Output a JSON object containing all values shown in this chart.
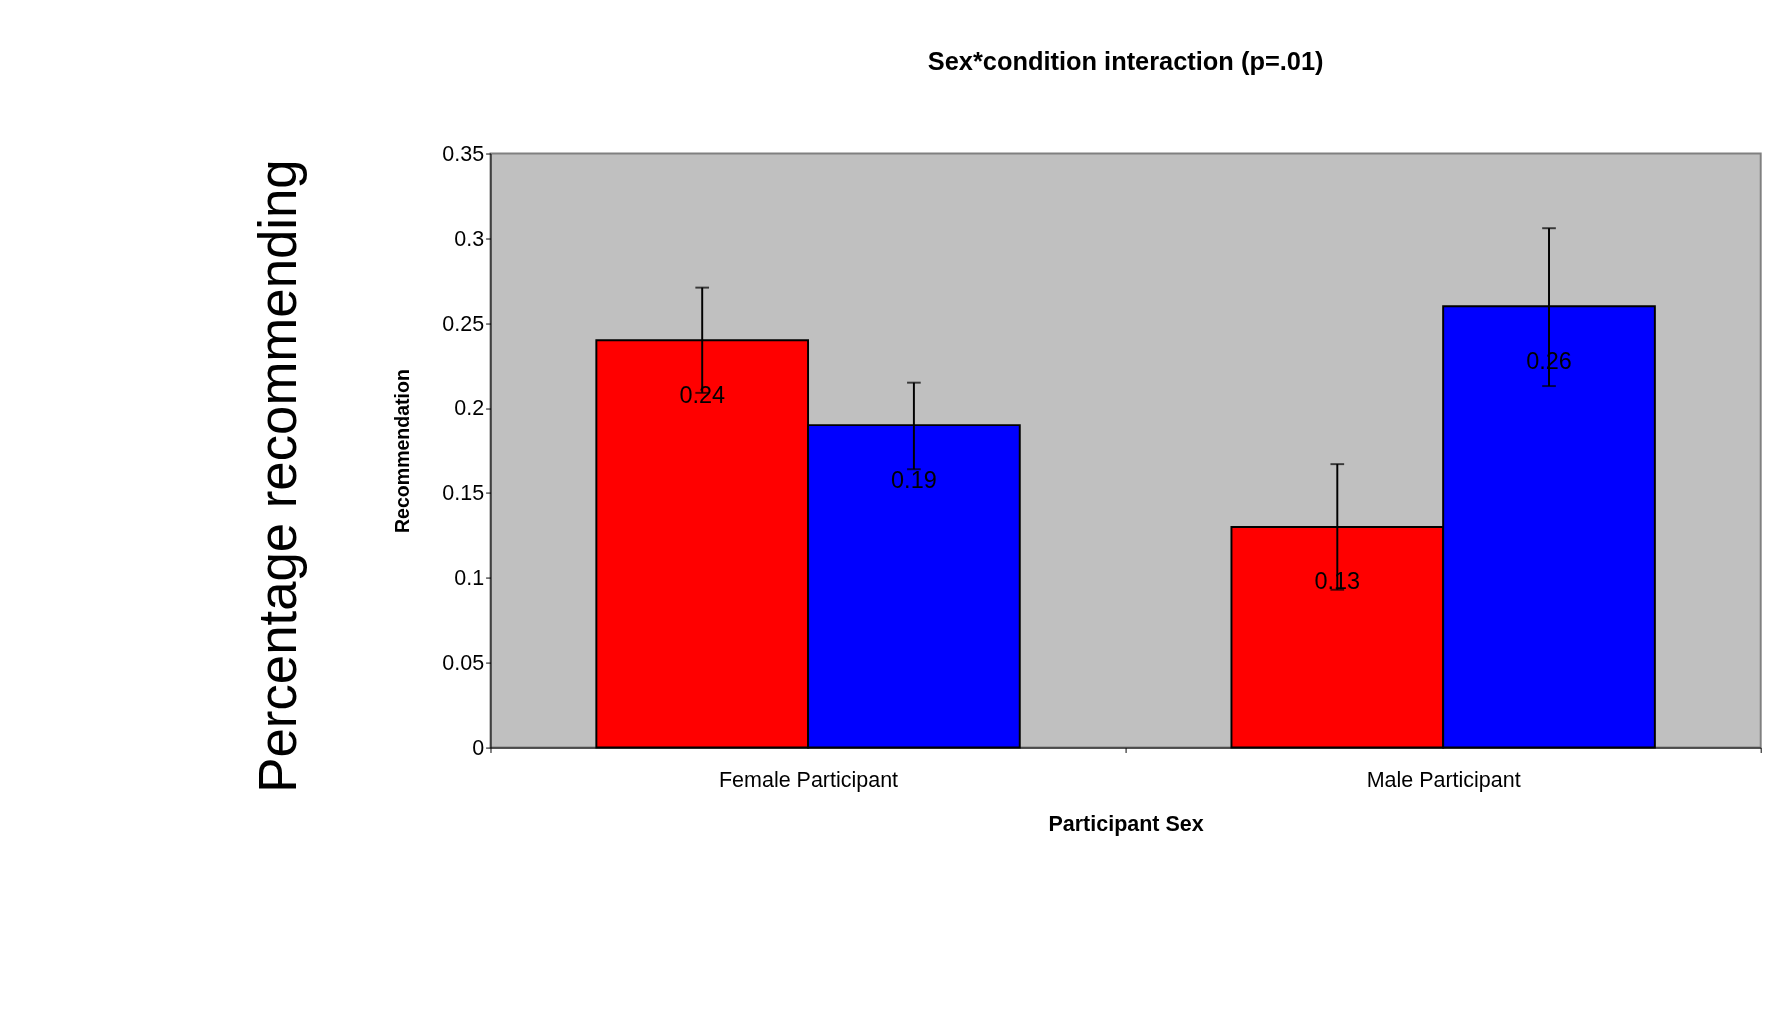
{
  "chart_data": {
    "type": "bar",
    "title": "Sex*condition interaction (p=.01)",
    "xlabel": "Participant Sex",
    "ylabel": "Recommendation",
    "categories": [
      "Female Participant",
      "Male Participant"
    ],
    "series": [
      {
        "color": "#ff0000",
        "values": [
          0.24,
          0.13
        ],
        "errors": [
          [
            0.209,
            0.271
          ],
          [
            0.093,
            0.167
          ]
        ]
      },
      {
        "color": "#0000ff",
        "values": [
          0.19,
          0.26
        ],
        "errors": [
          [
            0.164,
            0.215
          ],
          [
            0.213,
            0.306
          ]
        ]
      }
    ],
    "ylim": [
      0,
      0.35
    ],
    "yticks": [
      0,
      0.05,
      0.1,
      0.15,
      0.2,
      0.25,
      0.3,
      0.35
    ],
    "grid": false,
    "data_labels": true,
    "annotations": [
      "Percentage recommending"
    ]
  }
}
